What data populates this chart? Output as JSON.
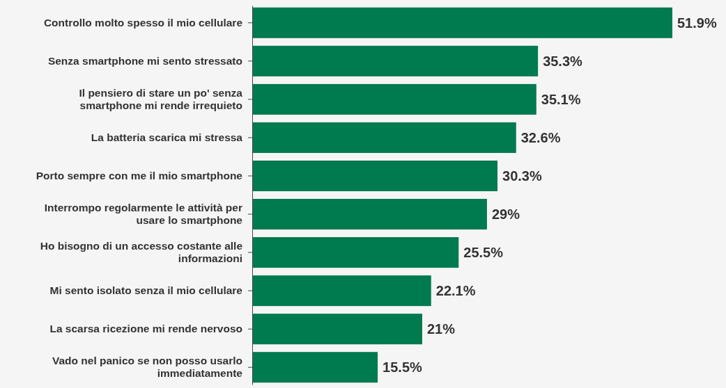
{
  "chart_data": {
    "type": "bar",
    "orientation": "horizontal",
    "categories": [
      "Controllo molto spesso il mio cellulare",
      "Senza smartphone mi sento stressato",
      "Il pensiero di stare un po' senza smartphone mi rende irrequieto",
      "La batteria scarica mi stressa",
      "Porto sempre con me il mio smartphone",
      "Interrompo regolarmente le attività per usare lo smartphone",
      "Ho bisogno di un accesso costante alle informazioni",
      "Mi sento isolato senza il mio cellulare",
      "La scarsa ricezione mi rende nervoso",
      "Vado nel panico se non posso usarlo immediatamente"
    ],
    "values": [
      51.9,
      35.3,
      35.1,
      32.6,
      30.3,
      29,
      25.5,
      22.1,
      21,
      15.5
    ],
    "value_labels": [
      "51.9%",
      "35.3%",
      "35.1%",
      "32.6%",
      "30.3%",
      "29%",
      "25.5%",
      "22.1%",
      "21%",
      "15.5%"
    ],
    "color": "#007a4f"
  }
}
